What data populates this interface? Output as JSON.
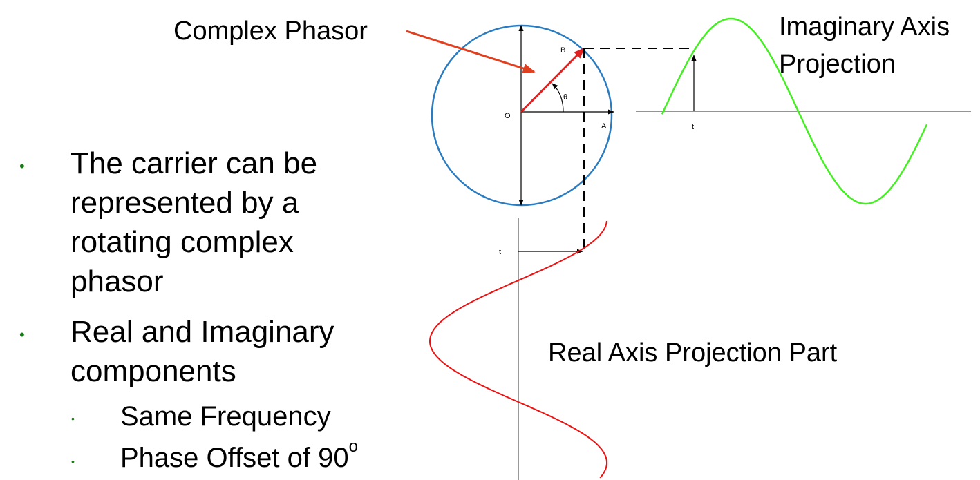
{
  "labels": {
    "complex_phasor": "Complex Phasor",
    "imaginary_projection_line1": "Imaginary Axis",
    "imaginary_projection_line2": "Projection",
    "real_projection": "Real Axis Projection Part",
    "point_o": "O",
    "point_a": "A",
    "point_b": "B",
    "theta": "θ",
    "t_top": "t",
    "t_bottom": "t"
  },
  "bullets": [
    {
      "lines": [
        "The carrier can be",
        "represented by a",
        "rotating complex",
        "phasor"
      ],
      "marker": "•"
    },
    {
      "lines": [
        "Real and Imaginary",
        "components"
      ],
      "marker": "•",
      "sub": [
        {
          "text": "Same Frequency",
          "marker": "•"
        },
        {
          "text": "Phase Offset of 90",
          "sup": "o",
          "marker": "•"
        }
      ]
    }
  ],
  "colors": {
    "circle": "#2a7bbf",
    "phasor": "#e02020",
    "pointer_arrow": "#e04020",
    "imag_wave": "#44ee22",
    "real_wave": "#ee1111",
    "axes": "#000000",
    "bullet_marker": "#1a7a1a"
  }
}
